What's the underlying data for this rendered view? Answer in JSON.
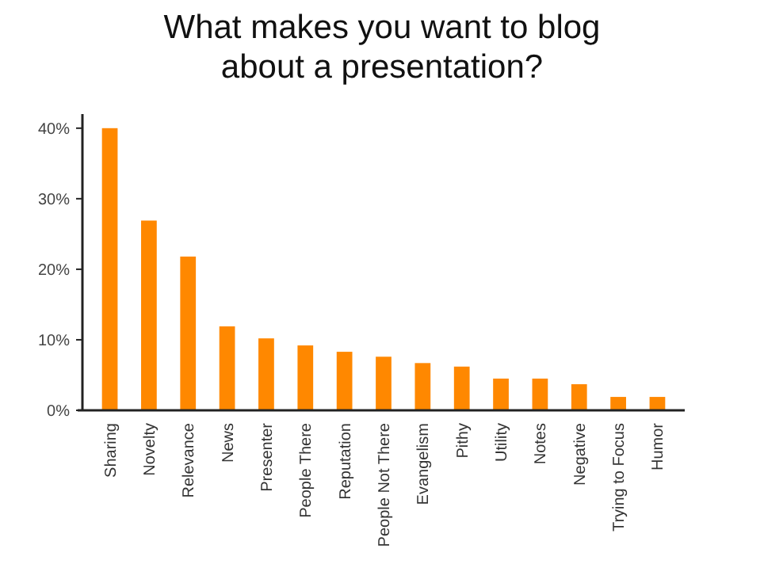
{
  "chart_data": {
    "type": "bar",
    "title": "What makes you want to blog about a presentation?",
    "categories": [
      "Sharing",
      "Novelty",
      "Relevance",
      "News",
      "Presenter",
      "People There",
      "Reputation",
      "People Not There",
      "Evangelism",
      "Pithy",
      "Utility",
      "Notes",
      "Negative",
      "Trying to Focus",
      "Humor"
    ],
    "values": [
      40,
      26.9,
      21.8,
      11.9,
      10.2,
      9.2,
      8.3,
      7.6,
      6.7,
      6.2,
      4.5,
      4.5,
      3.7,
      1.9,
      1.9
    ],
    "color": "#ff8800",
    "ylim": [
      0,
      42
    ],
    "yticks": [
      {
        "value": 0,
        "label": "0%"
      },
      {
        "value": 10,
        "label": "10%"
      },
      {
        "value": 20,
        "label": "20%"
      },
      {
        "value": 30,
        "label": "30%"
      },
      {
        "value": 40,
        "label": "40%"
      }
    ],
    "grid": false
  }
}
